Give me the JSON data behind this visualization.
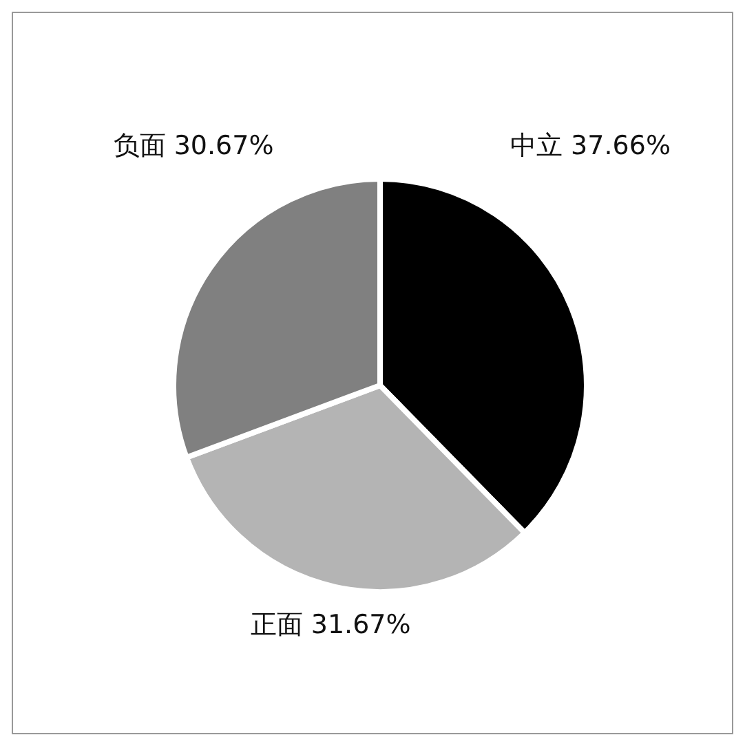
{
  "chart_data": {
    "type": "pie",
    "categories": [
      "中立",
      "正面",
      "负面"
    ],
    "values": [
      37.66,
      31.67,
      30.67
    ],
    "colors": [
      "#000000",
      "#b4b4b4",
      "#808080"
    ],
    "value_labels": [
      "37.66%",
      "31.67%",
      "30.67%"
    ]
  }
}
